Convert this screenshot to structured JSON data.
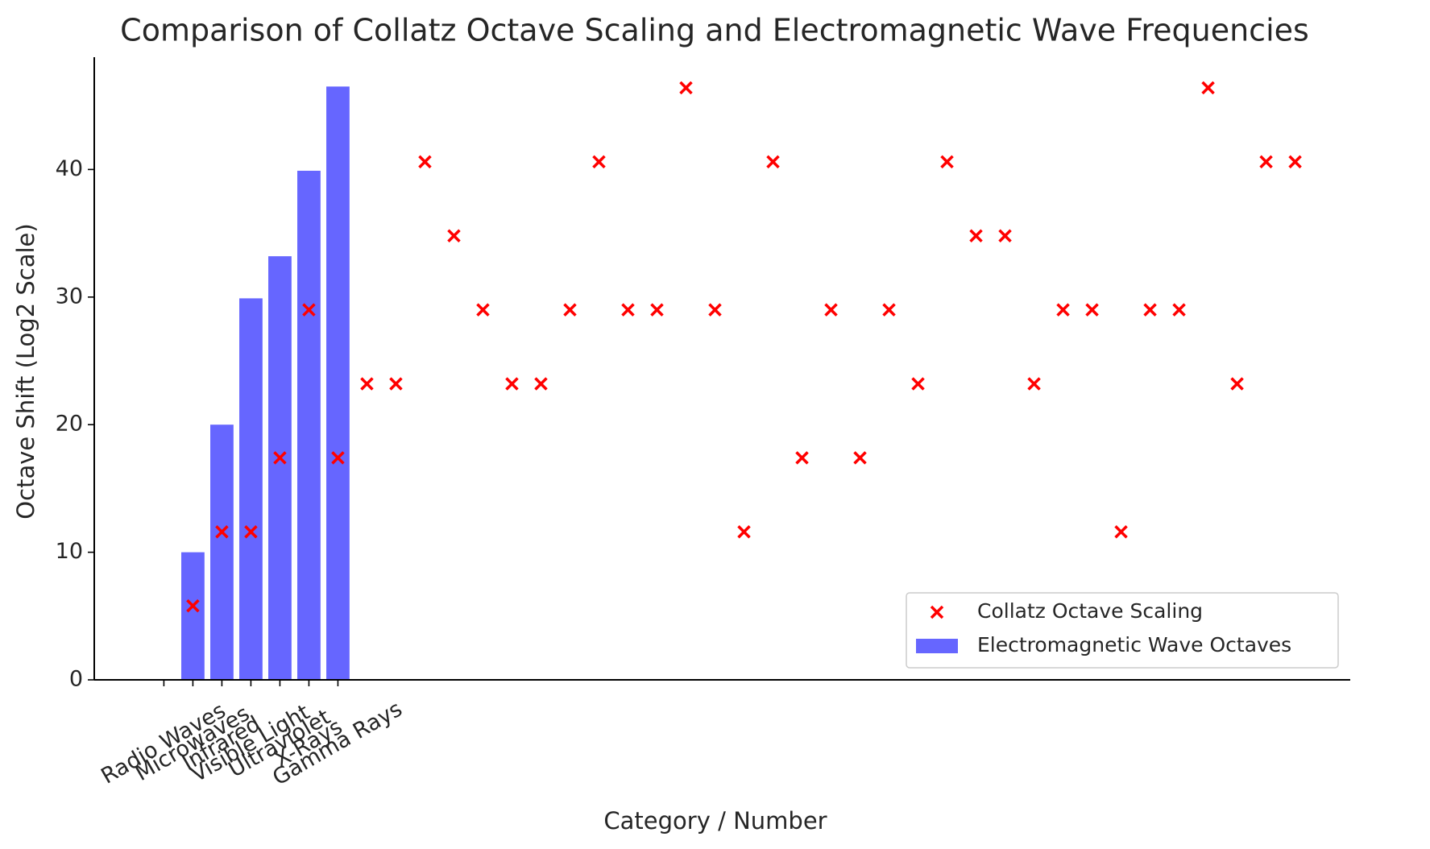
{
  "chart_data": {
    "type": "combo",
    "title": "Comparison of Collatz Octave Scaling and Electromagnetic Wave Frequencies",
    "x_label": "Category / Number",
    "y_label": "Octave Shift (Log2 Scale)",
    "xlim": [
      -2.4,
      40.9
    ],
    "xticks": [
      {
        "value": 0,
        "label": "Radio Waves"
      },
      {
        "value": 1,
        "label": "Microwaves"
      },
      {
        "value": 2,
        "label": "Infrared"
      },
      {
        "value": 3,
        "label": "Visible Light"
      },
      {
        "value": 4,
        "label": "Ultraviolet"
      },
      {
        "value": 5,
        "label": "X-Rays"
      },
      {
        "value": 6,
        "label": "Gamma Rays"
      }
    ],
    "ylim": [
      0,
      48.8
    ],
    "yticks": [
      0,
      10,
      20,
      30,
      40
    ],
    "legend": "lower right",
    "series": [
      {
        "name": "Collatz Octave Scaling",
        "type": "scatter",
        "marker": "x",
        "color": "#ff0000",
        "x": [
          1,
          2,
          3,
          4,
          5,
          6,
          7,
          8,
          9,
          10,
          11,
          12,
          13,
          14,
          15,
          16,
          17,
          18,
          19,
          20,
          21,
          22,
          23,
          24,
          25,
          26,
          27,
          28,
          29,
          30,
          31,
          32,
          33,
          34,
          35,
          36,
          37,
          38,
          39
        ],
        "values": [
          5.8,
          11.6,
          11.6,
          17.4,
          29.0,
          17.4,
          23.2,
          23.2,
          40.6,
          34.8,
          29.0,
          23.2,
          23.2,
          29.0,
          40.6,
          29.0,
          29.0,
          46.4,
          29.0,
          11.6,
          40.6,
          17.4,
          29.0,
          17.4,
          29.0,
          23.2,
          40.6,
          34.8,
          34.8,
          23.2,
          29.0,
          29.0,
          11.6,
          29.0,
          29.0,
          46.4,
          23.2,
          40.6,
          40.6
        ]
      },
      {
        "name": "Electromagnetic Wave Octaves",
        "type": "bar",
        "color": "#6666ff",
        "x": [
          1,
          2,
          3,
          4,
          5,
          6
        ],
        "values": [
          10.0,
          20.0,
          29.9,
          33.2,
          39.9,
          46.5
        ]
      }
    ]
  }
}
